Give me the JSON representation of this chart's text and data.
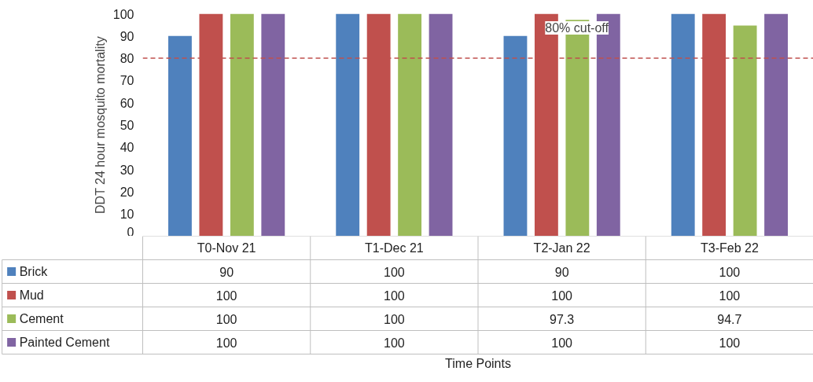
{
  "chart_data": {
    "type": "bar",
    "ylabel": "DDT 24 hour mosquito mortality",
    "annotations": [
      "Time Points"
    ],
    "categories": [
      "T0-Nov 21",
      "T1-Dec 21",
      "T2-Jan 22",
      "T3-Feb 22"
    ],
    "series": [
      {
        "name": "Brick",
        "color": "#4f81bd",
        "values": [
          90,
          100,
          90,
          100
        ]
      },
      {
        "name": "Mud",
        "color": "#c0504d",
        "values": [
          100,
          100,
          100,
          100
        ]
      },
      {
        "name": "Cement",
        "color": "#9bbb59",
        "values": [
          100,
          100,
          97.3,
          94.7
        ]
      },
      {
        "name": "Painted Cement",
        "color": "#8064a2",
        "values": [
          100,
          100,
          100,
          100
        ]
      }
    ],
    "ylim": [
      0,
      100
    ],
    "yticks": [
      0,
      10,
      20,
      30,
      40,
      50,
      60,
      70,
      80,
      90,
      100
    ],
    "ref_lines": [
      {
        "axis": "y",
        "value": 80,
        "label": "80% cut-off",
        "color": "#c0504d",
        "line_style": "dashed"
      }
    ],
    "grid": false,
    "legend": "bottom",
    "data_labels": true
  }
}
